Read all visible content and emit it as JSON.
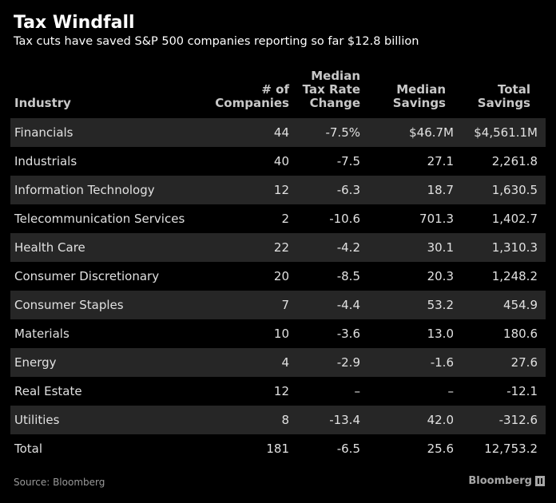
{
  "title": "Tax Windfall",
  "subtitle": "Tax cuts have saved S&P 500 companies reporting so far $12.8 billion",
  "headers": {
    "industry": "Industry",
    "companies": [
      "# of",
      "Companies"
    ],
    "tax_rate": [
      "Median",
      "Tax Rate",
      "Change"
    ],
    "median_savings": [
      "Median",
      "Savings"
    ],
    "total_savings": [
      "Total",
      "Savings"
    ]
  },
  "rows": [
    {
      "industry": "Financials",
      "companies": "44",
      "tax_rate": "-7.5%",
      "median_savings": "$46.7M",
      "total_savings": "$4,561.1M"
    },
    {
      "industry": "Industrials",
      "companies": "40",
      "tax_rate": "-7.5",
      "median_savings": "27.1",
      "total_savings": "2,261.8"
    },
    {
      "industry": "Information Technology",
      "companies": "12",
      "tax_rate": "-6.3",
      "median_savings": "18.7",
      "total_savings": "1,630.5"
    },
    {
      "industry": "Telecommunication Services",
      "companies": "2",
      "tax_rate": "-10.6",
      "median_savings": "701.3",
      "total_savings": "1,402.7"
    },
    {
      "industry": "Health Care",
      "companies": "22",
      "tax_rate": "-4.2",
      "median_savings": "30.1",
      "total_savings": "1,310.3"
    },
    {
      "industry": "Consumer Discretionary",
      "companies": "20",
      "tax_rate": "-8.5",
      "median_savings": "20.3",
      "total_savings": "1,248.2"
    },
    {
      "industry": "Consumer Staples",
      "companies": "7",
      "tax_rate": "-4.4",
      "median_savings": "53.2",
      "total_savings": "454.9"
    },
    {
      "industry": "Materials",
      "companies": "10",
      "tax_rate": "-3.6",
      "median_savings": "13.0",
      "total_savings": "180.6"
    },
    {
      "industry": "Energy",
      "companies": "4",
      "tax_rate": "-2.9",
      "median_savings": "-1.6",
      "total_savings": "27.6"
    },
    {
      "industry": "Real Estate",
      "companies": "12",
      "tax_rate": "–",
      "median_savings": "–",
      "total_savings": "-12.1"
    },
    {
      "industry": "Utilities",
      "companies": "8",
      "tax_rate": "-13.4",
      "median_savings": "42.0",
      "total_savings": "-312.6"
    },
    {
      "industry": "Total",
      "companies": "181",
      "tax_rate": "-6.5",
      "median_savings": "25.6",
      "total_savings": "12,753.2"
    }
  ],
  "source": "Source: Bloomberg",
  "brand": "Bloomberg",
  "colors": {
    "background": "#000000",
    "shaded_row": "#262626",
    "text": "#e0e0e0",
    "header": "#c8c8c8"
  },
  "chart_data": {
    "type": "table",
    "title": "Tax Windfall",
    "subtitle": "Tax cuts have saved S&P 500 companies reporting so far $12.8 billion",
    "columns": [
      "Industry",
      "# of Companies",
      "Median Tax Rate Change",
      "Median Savings",
      "Total Savings"
    ],
    "rows": [
      [
        "Financials",
        44,
        -7.5,
        46.7,
        4561.1
      ],
      [
        "Industrials",
        40,
        -7.5,
        27.1,
        2261.8
      ],
      [
        "Information Technology",
        12,
        -6.3,
        18.7,
        1630.5
      ],
      [
        "Telecommunication Services",
        2,
        -10.6,
        701.3,
        1402.7
      ],
      [
        "Health Care",
        22,
        -4.2,
        30.1,
        1310.3
      ],
      [
        "Consumer Discretionary",
        20,
        -8.5,
        20.3,
        1248.2
      ],
      [
        "Consumer Staples",
        7,
        -4.4,
        53.2,
        454.9
      ],
      [
        "Materials",
        10,
        -3.6,
        13.0,
        180.6
      ],
      [
        "Energy",
        4,
        -2.9,
        -1.6,
        27.6
      ],
      [
        "Real Estate",
        12,
        null,
        null,
        -12.1
      ],
      [
        "Utilities",
        8,
        -13.4,
        42.0,
        -312.6
      ],
      [
        "Total",
        181,
        -6.5,
        25.6,
        12753.2
      ]
    ]
  }
}
